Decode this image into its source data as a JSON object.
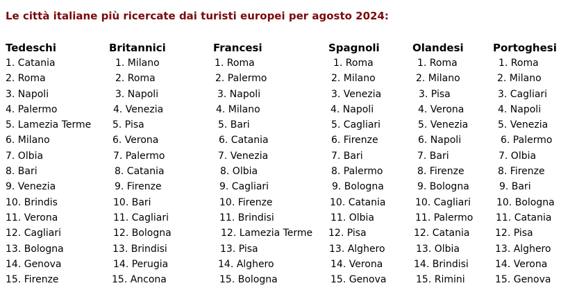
{
  "title": "Le città italiane più ricercate dai turisti europei per agosto 2024:",
  "title_color": "#7a0a0a",
  "columns": [
    {
      "heading": "Tedeschi",
      "items": [
        "1. Catania",
        "2. Roma",
        "3. Napoli",
        "4. Palermo",
        "5. Lamezia Terme",
        "6. Milano",
        "7. Olbia",
        "8. Bari",
        "9. Venezia",
        "10. Brindis",
        "11. Verona",
        "12. Cagliari",
        "13. Bologna",
        "14. Genova",
        "15. Firenze"
      ]
    },
    {
      "heading": "Britannici",
      "items": [
        "1. Milano",
        "2. Roma",
        "3. Napoli",
        "4. Venezia",
        "5. Pisa",
        "6. Verona",
        "7. Palermo",
        "8. Catania",
        "9. Firenze",
        "10. Bari",
        "11. Cagliari",
        "12. Bologna",
        "13. Brindisi",
        "14. Perugia",
        "15. Ancona"
      ]
    },
    {
      "heading": "Francesi",
      "items": [
        "1. Roma",
        "2. Palermo",
        "3. Napoli",
        "4. Milano",
        "5. Bari",
        "6. Catania",
        "7. Venezia",
        "8. Olbia",
        "9. Cagliari",
        "10. Firenze",
        "11. Brindisi",
        "12. Lamezia Terme",
        "13. Pisa",
        "14. Alghero",
        "15. Bologna"
      ]
    },
    {
      "heading": "Spagnoli",
      "items": [
        "1. Roma",
        "2. Milano",
        "3. Venezia",
        "4. Napoli",
        "5. Cagliari",
        "6. Firenze",
        "7. Bari",
        "8. Palermo",
        "9. Bologna",
        "10. Catania",
        "11. Olbia",
        "12. Pisa",
        "13. Alghero",
        "14. Verona",
        "15. Genova"
      ]
    },
    {
      "heading": "Olandesi",
      "items": [
        "1. Roma",
        "2. Milano",
        "3. Pisa",
        "4. Verona",
        "5. Venezia",
        "6. Napoli",
        "7. Bari",
        "8. Firenze",
        "9. Bologna",
        "10. Cagliari",
        "11. Palermo",
        "12. Catania",
        "13. Olbia",
        "14. Brindisi",
        "15. Rimini"
      ]
    },
    {
      "heading": "Portoghesi",
      "items": [
        "1. Roma",
        "2. Milano",
        "3. Cagliari",
        "4. Napoli",
        "5. Venezia",
        "6. Palermo",
        "7. Olbia",
        "8. Firenze",
        "9. Bari",
        "10. Bologna",
        "11. Catania",
        "12. Pisa",
        "13. Alghero",
        "14. Verona",
        "15. Genova"
      ]
    }
  ]
}
